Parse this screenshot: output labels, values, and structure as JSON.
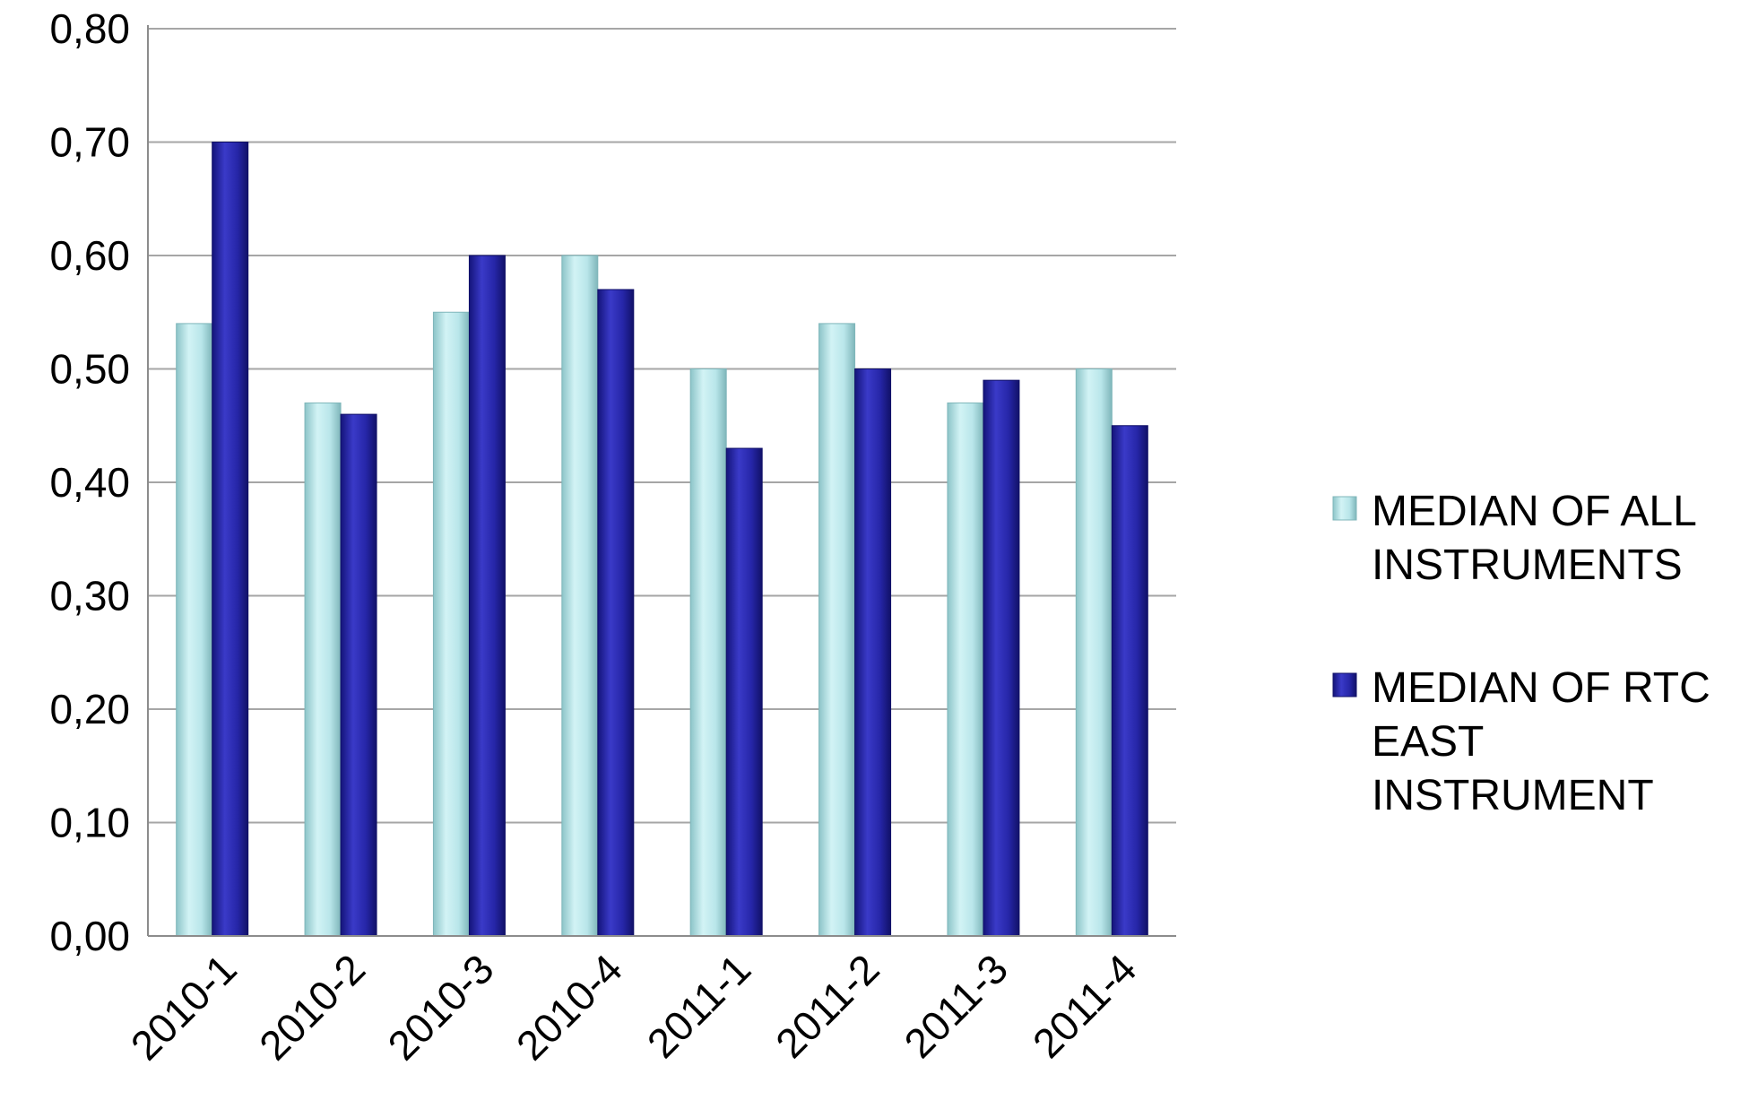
{
  "chart_data": {
    "type": "bar",
    "title": "",
    "xlabel": "",
    "ylabel": "",
    "categories": [
      "2010-1",
      "2010-2",
      "2010-3",
      "2010-4",
      "2011-1",
      "2011-2",
      "2011-3",
      "2011-4"
    ],
    "series": [
      {
        "name": "MEDIAN OF ALL INSTRUMENTS",
        "legend_lines": [
          "MEDIAN OF ALL",
          "INSTRUMENTS"
        ],
        "color": "#b9e6ea",
        "values": [
          0.54,
          0.47,
          0.55,
          0.6,
          0.5,
          0.54,
          0.47,
          0.5
        ]
      },
      {
        "name": "MEDIAN OF RTC EAST INSTRUMENT",
        "legend_lines": [
          "MEDIAN OF RTC",
          "EAST",
          "INSTRUMENT"
        ],
        "color": "#2626a8",
        "values": [
          0.7,
          0.46,
          0.6,
          0.57,
          0.43,
          0.5,
          0.49,
          0.45
        ]
      }
    ],
    "ylim": [
      0,
      0.8
    ],
    "yticks": [
      "0,00",
      "0,10",
      "0,20",
      "0,30",
      "0,40",
      "0,50",
      "0,60",
      "0,70",
      "0,80"
    ],
    "grid": true,
    "legend_position": "right"
  }
}
